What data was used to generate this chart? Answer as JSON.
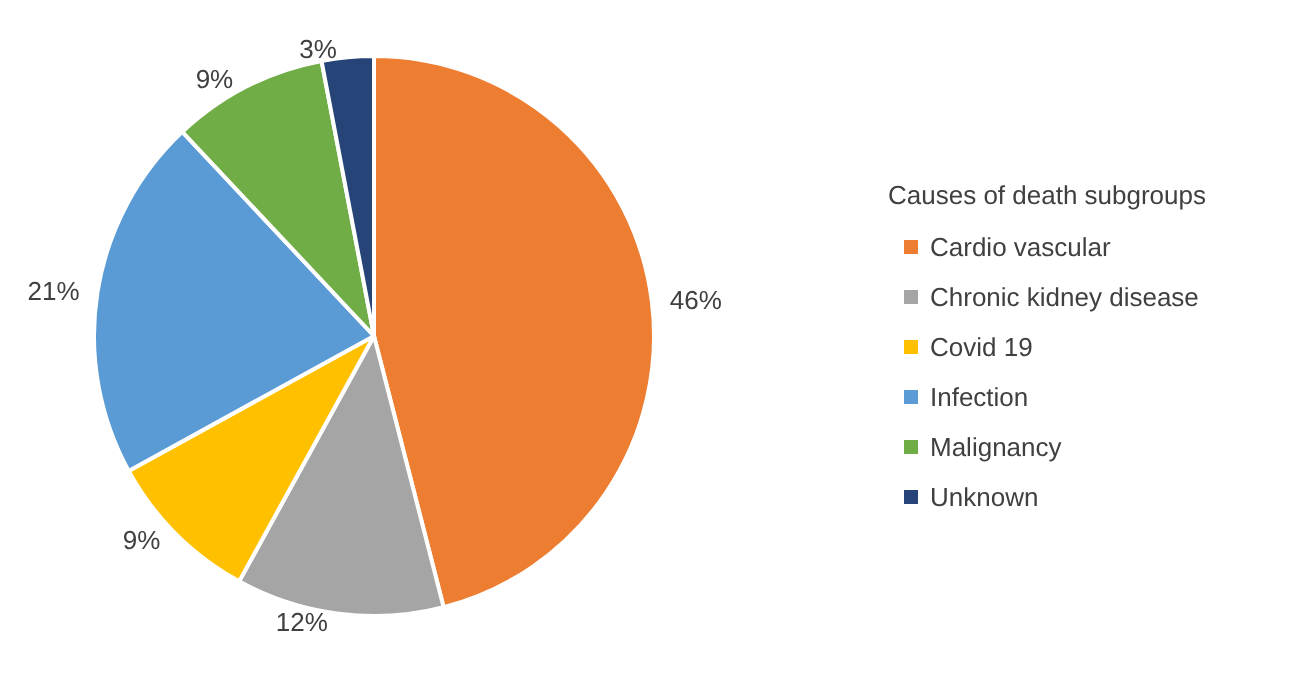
{
  "chart_data": {
    "type": "pie",
    "legend_title": "Causes of death subgroups",
    "categories": [
      "Cardio vascular",
      "Chronic kidney disease",
      "Covid 19",
      "Infection",
      "Malignancy",
      "Unknown"
    ],
    "values": [
      46,
      12,
      9,
      21,
      9,
      3
    ],
    "value_labels": [
      "46%",
      "12%",
      "9%",
      "21%",
      "9%",
      "3%"
    ],
    "colors": [
      "#ed7d31",
      "#a5a5a5",
      "#ffc000",
      "#5b9bd5",
      "#70ad47",
      "#264478"
    ],
    "legend": "right"
  }
}
